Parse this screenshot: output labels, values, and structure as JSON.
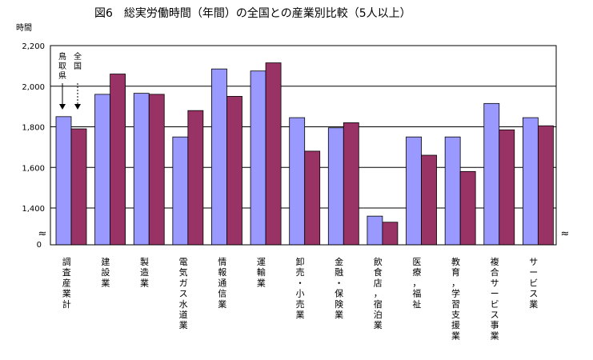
{
  "chart_data": {
    "type": "bar",
    "title": "図6　総実労働時間（年間）の全国との産業別比較（5人以上）",
    "ylabel": "時間",
    "ylim": [
      1300,
      2200
    ],
    "axis_break": true,
    "yticks": [
      {
        "value": 1400,
        "label": "1,400"
      },
      {
        "value": 1600,
        "label": "1,600"
      },
      {
        "value": 1800,
        "label": "1,800"
      },
      {
        "value": 2000,
        "label": "2,000"
      },
      {
        "value": 2200,
        "label": "2,200"
      }
    ],
    "zero_label": "0",
    "break_symbol": "≈",
    "grid": true,
    "categories": [
      "調査産業計",
      "建設業",
      "製造業",
      "電気ガス水道業",
      "情報通信業",
      "運輸業",
      "卸売・小売業",
      "金融・保険業",
      "飲食店，宿泊業",
      "医療，福祉",
      "教育，学習支援業",
      "複合サービス事業",
      "サービス業"
    ],
    "series": [
      {
        "name": "鳥取県",
        "color": "#9999ff",
        "values": [
          1850,
          1960,
          1965,
          1750,
          2085,
          2075,
          1845,
          1795,
          1360,
          1750,
          1750,
          1915,
          1845
        ]
      },
      {
        "name": "全国",
        "color": "#993366",
        "values": [
          1790,
          2060,
          1960,
          1880,
          1950,
          2115,
          1680,
          1820,
          1330,
          1660,
          1580,
          1785,
          1805
        ]
      }
    ],
    "annotations": {
      "series1_label": "鳥取県",
      "series2_label": "全国"
    }
  }
}
